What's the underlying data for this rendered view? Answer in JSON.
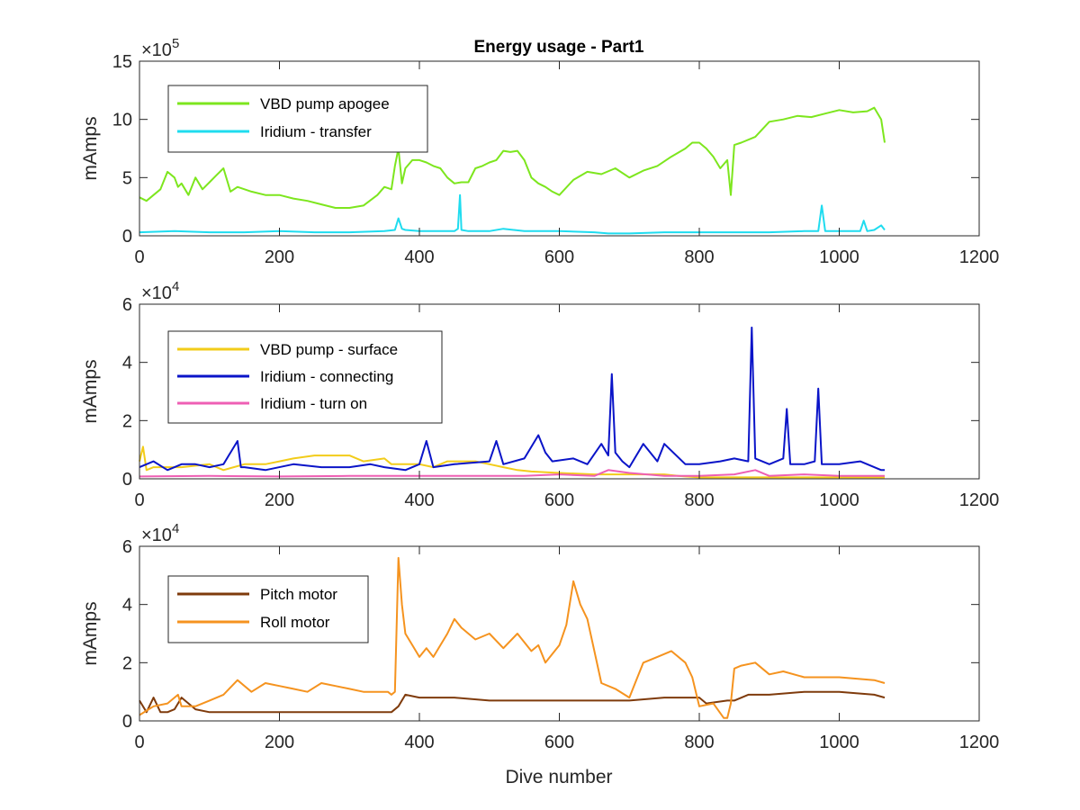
{
  "figure": {
    "title": "Energy usage - Part1",
    "xlabel": "Dive number"
  },
  "chart_data": [
    {
      "type": "line",
      "title": "Energy usage - Part1",
      "xlabel": "",
      "ylabel": "mAmps",
      "exponent_base": "×10",
      "exponent_power": "5",
      "xlim": [
        0,
        1200
      ],
      "ylim": [
        0,
        15
      ],
      "xticks": [
        0,
        200,
        400,
        600,
        800,
        1000,
        1200
      ],
      "yticks": [
        0,
        5,
        10,
        15
      ],
      "grid": false,
      "legend_position": "top-left",
      "series": [
        {
          "name": "VBD pump apogee",
          "color": "#7de61e",
          "x": [
            0,
            10,
            20,
            30,
            40,
            50,
            55,
            60,
            70,
            80,
            90,
            100,
            110,
            120,
            130,
            140,
            160,
            180,
            200,
            220,
            240,
            260,
            280,
            300,
            320,
            340,
            350,
            360,
            365,
            370,
            375,
            380,
            390,
            400,
            410,
            420,
            430,
            440,
            450,
            460,
            470,
            480,
            490,
            500,
            510,
            520,
            530,
            540,
            550,
            560,
            570,
            580,
            590,
            600,
            620,
            640,
            660,
            680,
            700,
            720,
            740,
            760,
            780,
            790,
            800,
            810,
            820,
            830,
            840,
            845,
            850,
            860,
            880,
            900,
            920,
            940,
            960,
            980,
            1000,
            1020,
            1040,
            1050,
            1060,
            1065
          ],
          "values": [
            3.3,
            3.0,
            3.5,
            4.0,
            5.5,
            5.0,
            4.2,
            4.5,
            3.5,
            5.0,
            4.0,
            4.6,
            5.2,
            5.8,
            3.8,
            4.2,
            3.8,
            3.5,
            3.5,
            3.2,
            3.0,
            2.7,
            2.4,
            2.4,
            2.6,
            3.5,
            4.2,
            4.0,
            6.0,
            7.5,
            4.5,
            5.8,
            6.5,
            6.5,
            6.3,
            6.0,
            5.8,
            5.0,
            4.5,
            4.6,
            4.6,
            5.8,
            6.0,
            6.3,
            6.5,
            7.3,
            7.2,
            7.3,
            6.5,
            5.0,
            4.5,
            4.2,
            3.8,
            3.5,
            4.8,
            5.5,
            5.3,
            5.8,
            5.0,
            5.6,
            6.0,
            6.8,
            7.5,
            8.0,
            8.0,
            7.5,
            6.8,
            5.8,
            6.5,
            3.5,
            7.8,
            8.0,
            8.5,
            9.8,
            10.0,
            10.3,
            10.2,
            10.5,
            10.8,
            10.6,
            10.7,
            11.0,
            10.0,
            8.0
          ]
        },
        {
          "name": "Iridium - transfer",
          "color": "#1fdcef",
          "x": [
            0,
            50,
            100,
            150,
            200,
            250,
            300,
            350,
            365,
            370,
            375,
            380,
            400,
            450,
            455,
            458,
            460,
            470,
            500,
            520,
            550,
            600,
            650,
            670,
            700,
            750,
            800,
            850,
            900,
            950,
            970,
            975,
            980,
            1000,
            1030,
            1035,
            1040,
            1050,
            1060,
            1065
          ],
          "values": [
            0.3,
            0.4,
            0.3,
            0.3,
            0.4,
            0.3,
            0.3,
            0.4,
            0.5,
            1.5,
            0.6,
            0.5,
            0.4,
            0.4,
            0.6,
            3.5,
            0.5,
            0.4,
            0.4,
            0.6,
            0.4,
            0.4,
            0.3,
            0.2,
            0.2,
            0.3,
            0.3,
            0.3,
            0.3,
            0.4,
            0.4,
            2.6,
            0.4,
            0.4,
            0.4,
            1.3,
            0.4,
            0.5,
            0.9,
            0.5
          ]
        }
      ]
    },
    {
      "type": "line",
      "title": "",
      "xlabel": "",
      "ylabel": "mAmps",
      "exponent_base": "×10",
      "exponent_power": "4",
      "xlim": [
        0,
        1200
      ],
      "ylim": [
        0,
        6
      ],
      "xticks": [
        0,
        200,
        400,
        600,
        800,
        1000,
        1200
      ],
      "yticks": [
        0,
        2,
        4,
        6
      ],
      "grid": false,
      "legend_position": "top-left",
      "series": [
        {
          "name": "VBD pump - surface",
          "color": "#f2cc1a",
          "x": [
            0,
            5,
            10,
            20,
            60,
            100,
            120,
            150,
            180,
            200,
            220,
            250,
            280,
            300,
            320,
            350,
            360,
            380,
            400,
            420,
            440,
            460,
            480,
            500,
            520,
            540,
            560,
            600,
            650,
            700,
            750,
            770,
            800,
            850,
            900,
            950,
            1000,
            1050,
            1065
          ],
          "values": [
            0.6,
            1.1,
            0.3,
            0.4,
            0.4,
            0.5,
            0.3,
            0.5,
            0.5,
            0.6,
            0.7,
            0.8,
            0.8,
            0.8,
            0.6,
            0.7,
            0.5,
            0.5,
            0.5,
            0.4,
            0.6,
            0.6,
            0.6,
            0.5,
            0.4,
            0.3,
            0.25,
            0.2,
            0.15,
            0.15,
            0.15,
            0.1,
            0.05,
            0.05,
            0.05,
            0.05,
            0.05,
            0.05,
            0.05
          ]
        },
        {
          "name": "Iridium - connecting",
          "color": "#0a14c8",
          "x": [
            0,
            20,
            40,
            60,
            80,
            100,
            120,
            140,
            145,
            150,
            180,
            220,
            260,
            300,
            330,
            350,
            380,
            400,
            410,
            420,
            450,
            500,
            510,
            520,
            550,
            570,
            580,
            590,
            620,
            640,
            660,
            670,
            675,
            680,
            690,
            700,
            720,
            740,
            750,
            780,
            800,
            830,
            850,
            870,
            875,
            880,
            900,
            920,
            925,
            930,
            950,
            965,
            970,
            975,
            1000,
            1030,
            1060,
            1065
          ],
          "values": [
            0.4,
            0.6,
            0.3,
            0.5,
            0.5,
            0.4,
            0.5,
            1.3,
            0.4,
            0.4,
            0.3,
            0.5,
            0.4,
            0.4,
            0.5,
            0.4,
            0.3,
            0.5,
            1.3,
            0.4,
            0.5,
            0.6,
            1.3,
            0.5,
            0.7,
            1.5,
            0.9,
            0.6,
            0.7,
            0.5,
            1.2,
            0.8,
            3.6,
            0.9,
            0.6,
            0.4,
            1.2,
            0.6,
            1.2,
            0.5,
            0.5,
            0.6,
            0.7,
            0.6,
            5.2,
            0.7,
            0.5,
            0.7,
            2.4,
            0.5,
            0.5,
            0.6,
            3.1,
            0.5,
            0.5,
            0.6,
            0.3,
            0.3
          ]
        },
        {
          "name": "Iridium - turn on",
          "color": "#ee5fb4",
          "x": [
            0,
            100,
            200,
            300,
            400,
            500,
            550,
            600,
            650,
            670,
            700,
            750,
            800,
            850,
            880,
            900,
            950,
            1000,
            1065
          ],
          "values": [
            0.08,
            0.1,
            0.08,
            0.1,
            0.1,
            0.1,
            0.1,
            0.15,
            0.1,
            0.3,
            0.2,
            0.1,
            0.1,
            0.15,
            0.3,
            0.1,
            0.15,
            0.1,
            0.1
          ]
        }
      ]
    },
    {
      "type": "line",
      "title": "",
      "xlabel": "Dive number",
      "ylabel": "mAmps",
      "exponent_base": "×10",
      "exponent_power": "4",
      "xlim": [
        0,
        1200
      ],
      "ylim": [
        0,
        6
      ],
      "xticks": [
        0,
        200,
        400,
        600,
        800,
        1000,
        1200
      ],
      "yticks": [
        0,
        2,
        4,
        6
      ],
      "grid": false,
      "legend_position": "top-left",
      "series": [
        {
          "name": "Pitch motor",
          "color": "#7f3b0c",
          "x": [
            0,
            10,
            20,
            30,
            40,
            50,
            60,
            80,
            100,
            150,
            200,
            250,
            300,
            350,
            360,
            370,
            380,
            400,
            450,
            500,
            550,
            600,
            650,
            700,
            750,
            800,
            810,
            840,
            850,
            870,
            900,
            950,
            1000,
            1050,
            1065
          ],
          "values": [
            0.7,
            0.3,
            0.8,
            0.3,
            0.3,
            0.4,
            0.8,
            0.4,
            0.3,
            0.3,
            0.3,
            0.3,
            0.3,
            0.3,
            0.3,
            0.5,
            0.9,
            0.8,
            0.8,
            0.7,
            0.7,
            0.7,
            0.7,
            0.7,
            0.8,
            0.8,
            0.6,
            0.7,
            0.7,
            0.9,
            0.9,
            1.0,
            1.0,
            0.9,
            0.8
          ]
        },
        {
          "name": "Roll motor",
          "color": "#f5931f",
          "x": [
            0,
            20,
            40,
            55,
            60,
            80,
            100,
            120,
            140,
            160,
            180,
            200,
            220,
            240,
            260,
            280,
            300,
            320,
            340,
            355,
            360,
            365,
            370,
            375,
            380,
            390,
            400,
            410,
            420,
            440,
            450,
            460,
            480,
            500,
            520,
            540,
            560,
            570,
            580,
            600,
            610,
            620,
            630,
            640,
            650,
            660,
            680,
            700,
            710,
            720,
            740,
            760,
            780,
            790,
            800,
            820,
            835,
            840,
            845,
            850,
            860,
            880,
            900,
            920,
            950,
            1000,
            1050,
            1065
          ],
          "values": [
            0.2,
            0.5,
            0.6,
            0.9,
            0.5,
            0.5,
            0.7,
            0.9,
            1.4,
            1.0,
            1.3,
            1.2,
            1.1,
            1.0,
            1.3,
            1.2,
            1.1,
            1.0,
            1.0,
            1.0,
            0.9,
            1.0,
            5.6,
            4.0,
            3.0,
            2.6,
            2.2,
            2.5,
            2.2,
            3.0,
            3.5,
            3.2,
            2.8,
            3.0,
            2.5,
            3.0,
            2.4,
            2.6,
            2.0,
            2.6,
            3.3,
            4.8,
            4.0,
            3.5,
            2.4,
            1.3,
            1.1,
            0.8,
            1.4,
            2.0,
            2.2,
            2.4,
            2.0,
            1.5,
            0.5,
            0.6,
            0.1,
            0.1,
            0.6,
            1.8,
            1.9,
            2.0,
            1.6,
            1.7,
            1.5,
            1.5,
            1.4,
            1.3
          ]
        }
      ]
    }
  ]
}
